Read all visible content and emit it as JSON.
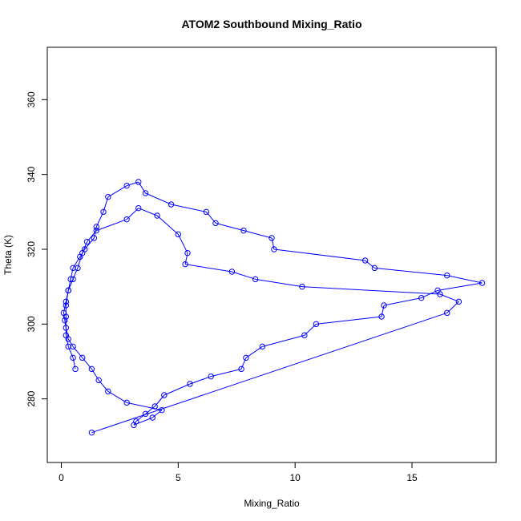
{
  "chart_data": {
    "type": "line",
    "title": "ATOM2 Southbound Mixing_Ratio",
    "xlabel": "Mixing_Ratio",
    "ylabel": "Theta (K)",
    "xlim": [
      -0.6,
      18.6
    ],
    "ylim": [
      263,
      374
    ],
    "xticks": [
      0,
      5,
      10,
      15
    ],
    "yticks": [
      280,
      300,
      320,
      340,
      360
    ],
    "color": "#0000ff",
    "marker": "open-circle",
    "grid": false,
    "legend": "none",
    "series": [
      {
        "x": [
          0.6,
          0.5,
          0.3,
          0.2,
          0.2,
          0.2,
          0.3,
          0.4,
          0.5,
          0.8,
          1.0,
          1.4,
          1.5,
          1.8,
          2.0,
          2.8,
          3.3,
          3.6,
          4.7,
          6.2,
          6.6,
          7.8,
          9.0,
          9.1,
          13.0,
          13.4,
          16.5,
          18.0,
          16.1,
          15.4,
          13.8,
          13.7,
          10.9,
          10.4,
          8.6,
          7.9,
          7.7,
          6.4,
          5.5,
          4.4,
          4.0,
          3.6,
          3.2,
          3.1,
          3.9,
          4.3,
          2.8,
          2.0,
          1.6,
          1.3,
          0.9,
          0.5,
          0.3,
          0.2,
          0.15,
          0.1,
          0.2,
          0.3,
          0.5,
          0.7,
          0.9,
          1.1,
          1.5,
          2.8,
          3.3,
          4.1,
          5.0,
          5.4,
          5.3,
          7.3,
          8.3,
          10.3,
          16.2,
          17.0,
          16.5,
          1.3
        ],
        "y": [
          288,
          291,
          294,
          297,
          302,
          305,
          309,
          312,
          315,
          318,
          320,
          323,
          326,
          330,
          334,
          337,
          338,
          335,
          332,
          330,
          327,
          325,
          323,
          320,
          317,
          315,
          313,
          311,
          309,
          307,
          305,
          302,
          300,
          297,
          294,
          291,
          288,
          286,
          284,
          281,
          278,
          276,
          274,
          273,
          275,
          277,
          279,
          282,
          285,
          288,
          291,
          294,
          296,
          299,
          301,
          303,
          306,
          309,
          312,
          315,
          319,
          322,
          325,
          328,
          331,
          329,
          324,
          319,
          316,
          314,
          312,
          310,
          308,
          306,
          303,
          271
        ]
      }
    ]
  }
}
